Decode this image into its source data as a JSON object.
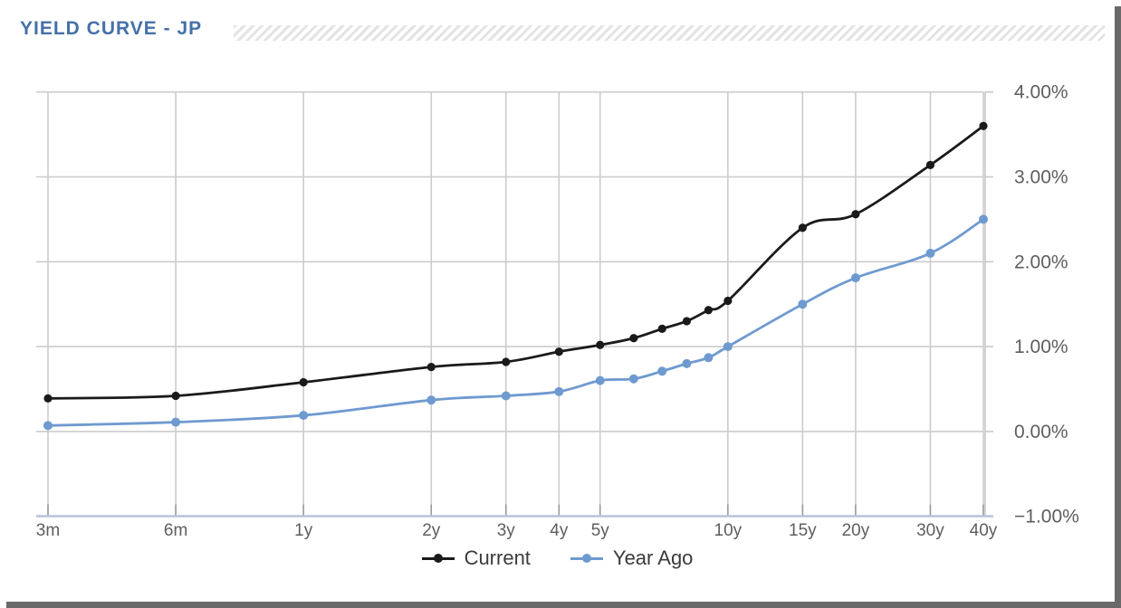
{
  "header": {
    "title": "YIELD CURVE - JP"
  },
  "colors": {
    "title": "#4671a8",
    "grid": "#cccccc",
    "bottom_axis_line": "#b7c3d9",
    "bottom_axis_tick": "#999999",
    "right_axis": "#c6c6c6",
    "axis_label": "#5e5e5e",
    "legend_text": "#3b3b3b",
    "window_shadow": "#696969",
    "hatch_stripe": "#e3e3e3",
    "series_current": "#1a1a1a",
    "series_year_ago": "#6f9ad0"
  },
  "chart_data": {
    "type": "line",
    "title": "YIELD CURVE - JP",
    "x_scale": "log",
    "xlabel": "",
    "ylabel": "",
    "grid": true,
    "categories": [
      "3m",
      "6m",
      "1y",
      "2y",
      "3y",
      "4y",
      "5y",
      "6y",
      "7y",
      "8y",
      "9y",
      "10y",
      "15y",
      "20y",
      "30y",
      "40y"
    ],
    "maturities_years": [
      0.25,
      0.5,
      1,
      2,
      3,
      4,
      5,
      6,
      7,
      8,
      9,
      10,
      15,
      20,
      30,
      40
    ],
    "x_labeled": [
      true,
      true,
      true,
      true,
      true,
      true,
      true,
      false,
      false,
      false,
      false,
      true,
      true,
      true,
      true,
      true
    ],
    "series": [
      {
        "name": "Current",
        "color": "#1a1a1a",
        "values": [
          0.39,
          0.42,
          0.58,
          0.76,
          0.82,
          0.94,
          1.02,
          1.1,
          1.21,
          1.3,
          1.43,
          1.54,
          2.4,
          2.56,
          3.14,
          3.6
        ]
      },
      {
        "name": "Year Ago",
        "color": "#6f9ad0",
        "values": [
          0.07,
          0.11,
          0.19,
          0.37,
          0.42,
          0.47,
          0.6,
          0.62,
          0.71,
          0.8,
          0.87,
          1.0,
          1.5,
          1.81,
          2.1,
          2.5
        ]
      }
    ],
    "y_axis": {
      "side": "right",
      "unit": "%",
      "min": -1,
      "max": 4,
      "tick_values": [
        4,
        3,
        2,
        1,
        0,
        -1
      ],
      "ticks": [
        "4.00%",
        "3.00%",
        "2.00%",
        "1.00%",
        "0.00%",
        "−1.00%"
      ]
    },
    "legend": {
      "position": "bottom",
      "entries": [
        "Current",
        "Year Ago"
      ]
    }
  }
}
